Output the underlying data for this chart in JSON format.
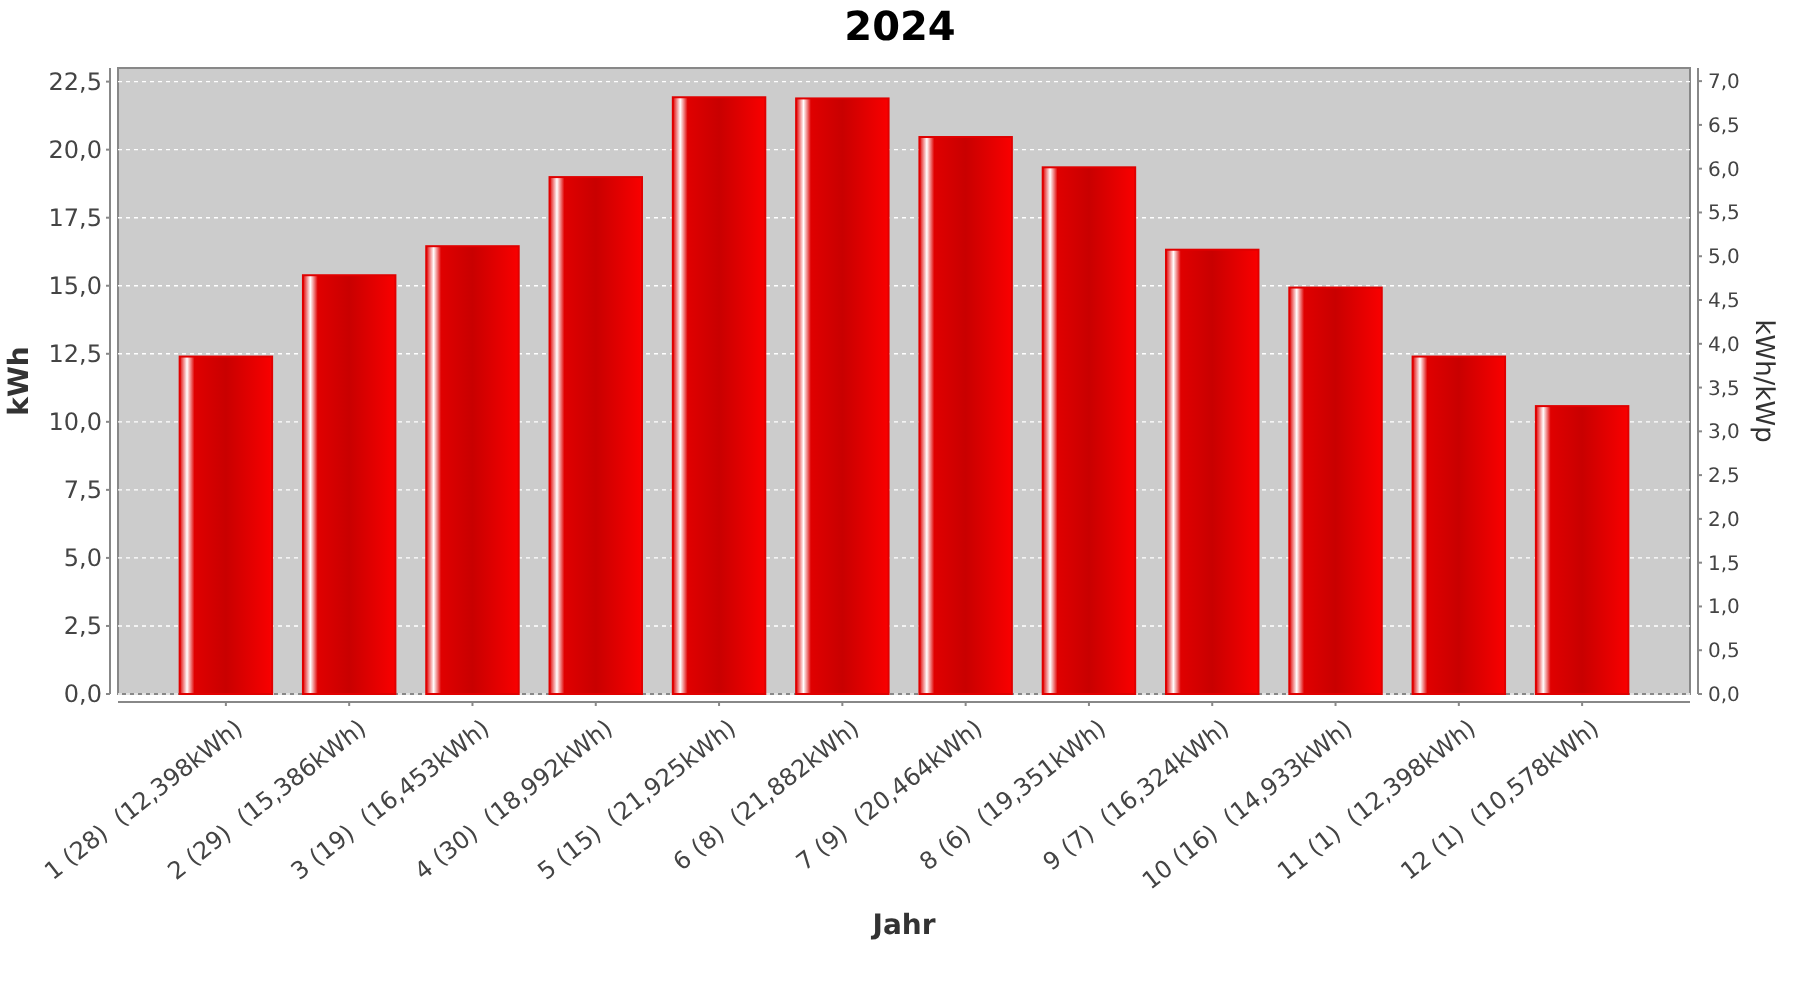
{
  "chart_data": {
    "type": "bar",
    "title": "2024",
    "xlabel": "Jahr",
    "ylabel": "kWh",
    "y2label": "kWh/kWp",
    "categories": [
      "1 (28)  (12,398kWh)",
      "2 (29)  (15,386kWh)",
      "3 (19)  (16,453kWh)",
      "4 (30)  (18,992kWh)",
      "5 (15)  (21,925kWh)",
      "6 (8)  (21,882kWh)",
      "7 (9)  (20,464kWh)",
      "8 (6)  (19,351kWh)",
      "9 (7)  (16,324kWh)",
      "10 (16)  (14,933kWh)",
      "11 (1)  (12,398kWh)",
      "12 (1)  (10,578kWh)"
    ],
    "series": [
      {
        "color": "#e00000",
        "values": [
          12.398,
          15.386,
          16.453,
          18.992,
          21.925,
          21.882,
          20.464,
          19.351,
          16.324,
          14.933,
          12.398,
          10.578
        ]
      }
    ],
    "ylim": [
      0,
      23.0
    ],
    "yticks": [
      {
        "value": 0,
        "label": "0,0"
      },
      {
        "value": 2.5,
        "label": "2,5"
      },
      {
        "value": 5,
        "label": "5,0"
      },
      {
        "value": 7.5,
        "label": "7,5"
      },
      {
        "value": 10,
        "label": "10,0"
      },
      {
        "value": 12.5,
        "label": "12,5"
      },
      {
        "value": 15,
        "label": "15,0"
      },
      {
        "value": 17.5,
        "label": "17,5"
      },
      {
        "value": 20,
        "label": "20,0"
      },
      {
        "value": 22.5,
        "label": "22,5"
      }
    ],
    "y2lim": [
      0,
      7.15
    ],
    "y2ticks": [
      {
        "value": 0,
        "label": "0,0"
      },
      {
        "value": 0.5,
        "label": "0,5"
      },
      {
        "value": 1,
        "label": "1,0"
      },
      {
        "value": 1.5,
        "label": "1,5"
      },
      {
        "value": 2,
        "label": "2,0"
      },
      {
        "value": 2.5,
        "label": "2,5"
      },
      {
        "value": 3,
        "label": "3,0"
      },
      {
        "value": 3.5,
        "label": "3,5"
      },
      {
        "value": 4,
        "label": "4,0"
      },
      {
        "value": 4.5,
        "label": "4,5"
      },
      {
        "value": 5,
        "label": "5,0"
      },
      {
        "value": 5.5,
        "label": "5,5"
      },
      {
        "value": 6,
        "label": "6,0"
      },
      {
        "value": 6.5,
        "label": "6,5"
      },
      {
        "value": 7,
        "label": "7,0"
      }
    ],
    "grid": "y"
  }
}
